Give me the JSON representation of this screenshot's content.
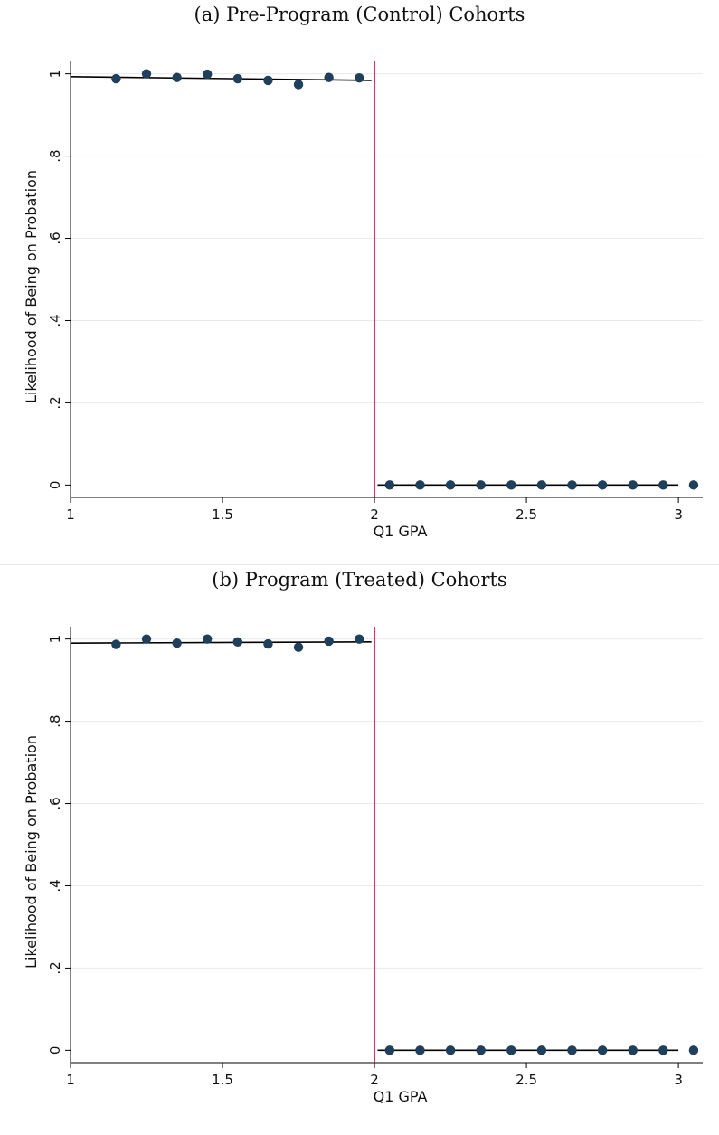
{
  "chart_data": [
    {
      "type": "scatter",
      "title": "(a) Pre-Program (Control) Cohorts",
      "xlabel": "Q1 GPA",
      "ylabel": "Likelihood of Being on Probation",
      "xlim": [
        1,
        3.08
      ],
      "ylim": [
        -0.03,
        1.03
      ],
      "x_ticks": [
        1,
        1.5,
        2,
        2.5,
        3
      ],
      "x_tick_labels": [
        "1",
        "1.5",
        "2",
        "2.5",
        "3"
      ],
      "y_ticks": [
        0,
        0.2,
        0.4,
        0.6,
        0.8,
        1
      ],
      "y_tick_labels": [
        "0",
        ".2",
        ".4",
        ".6",
        ".8",
        "1"
      ],
      "grid": "horizontal",
      "cutoff": 2,
      "points": [
        {
          "x": 1.15,
          "y": 0.988
        },
        {
          "x": 1.25,
          "y": 1.0
        },
        {
          "x": 1.35,
          "y": 0.991
        },
        {
          "x": 1.45,
          "y": 0.999
        },
        {
          "x": 1.55,
          "y": 0.988
        },
        {
          "x": 1.65,
          "y": 0.984
        },
        {
          "x": 1.75,
          "y": 0.974
        },
        {
          "x": 1.85,
          "y": 0.991
        },
        {
          "x": 1.95,
          "y": 0.99
        },
        {
          "x": 2.05,
          "y": 0
        },
        {
          "x": 2.15,
          "y": 0
        },
        {
          "x": 2.25,
          "y": 0
        },
        {
          "x": 2.35,
          "y": 0
        },
        {
          "x": 2.45,
          "y": 0
        },
        {
          "x": 2.55,
          "y": 0
        },
        {
          "x": 2.65,
          "y": 0
        },
        {
          "x": 2.75,
          "y": 0
        },
        {
          "x": 2.85,
          "y": 0
        },
        {
          "x": 2.95,
          "y": 0
        },
        {
          "x": 3.05,
          "y": 0
        }
      ],
      "fit_lines": [
        {
          "x": [
            1.0,
            1.99
          ],
          "y": [
            0.993,
            0.984
          ]
        },
        {
          "x": [
            2.01,
            3.0
          ],
          "y": [
            0.0,
            0.0
          ]
        }
      ],
      "colors": {
        "marker": "#1f3f5b",
        "cutoff_line": "#a6193c",
        "fit_line": "#000000",
        "grid": "#eaeaea"
      }
    },
    {
      "type": "scatter",
      "title": "(b) Program (Treated) Cohorts",
      "xlabel": "Q1 GPA",
      "ylabel": "Likelihood of Being on Probation",
      "xlim": [
        1,
        3.08
      ],
      "ylim": [
        -0.03,
        1.03
      ],
      "x_ticks": [
        1,
        1.5,
        2,
        2.5,
        3
      ],
      "x_tick_labels": [
        "1",
        "1.5",
        "2",
        "2.5",
        "3"
      ],
      "y_ticks": [
        0,
        0.2,
        0.4,
        0.6,
        0.8,
        1
      ],
      "y_tick_labels": [
        "0",
        ".2",
        ".4",
        ".6",
        ".8",
        "1"
      ],
      "grid": "horizontal",
      "cutoff": 2,
      "points": [
        {
          "x": 1.15,
          "y": 0.987
        },
        {
          "x": 1.25,
          "y": 1.0
        },
        {
          "x": 1.35,
          "y": 0.99
        },
        {
          "x": 1.45,
          "y": 1.0
        },
        {
          "x": 1.55,
          "y": 0.993
        },
        {
          "x": 1.65,
          "y": 0.988
        },
        {
          "x": 1.75,
          "y": 0.98
        },
        {
          "x": 1.85,
          "y": 0.995
        },
        {
          "x": 1.95,
          "y": 1.0
        }
      ],
      "points_right": [
        {
          "x": 2.05,
          "y": 0
        },
        {
          "x": 2.15,
          "y": 0
        },
        {
          "x": 2.25,
          "y": 0
        },
        {
          "x": 2.35,
          "y": 0
        },
        {
          "x": 2.45,
          "y": 0
        },
        {
          "x": 2.55,
          "y": 0
        },
        {
          "x": 2.65,
          "y": 0
        },
        {
          "x": 2.75,
          "y": 0
        },
        {
          "x": 2.85,
          "y": 0
        },
        {
          "x": 2.95,
          "y": 0
        },
        {
          "x": 3.05,
          "y": 0
        }
      ],
      "fit_lines": [
        {
          "x": [
            1.0,
            1.99
          ],
          "y": [
            0.99,
            0.993
          ]
        },
        {
          "x": [
            2.01,
            3.0
          ],
          "y": [
            0.0,
            0.0
          ]
        }
      ],
      "colors": {
        "marker": "#1f3f5b",
        "cutoff_line": "#a6193c",
        "fit_line": "#000000",
        "grid": "#eaeaea"
      }
    }
  ]
}
